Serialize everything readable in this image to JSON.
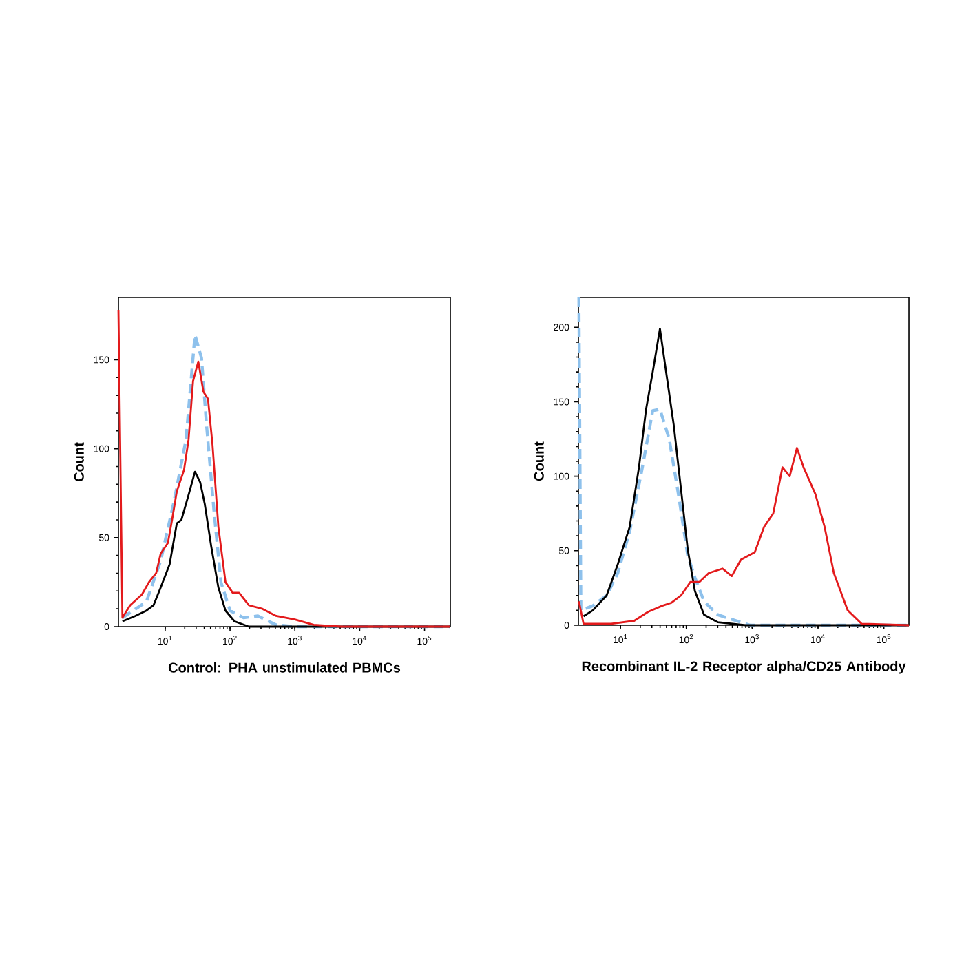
{
  "chart_data": [
    {
      "type": "line",
      "xlabel": "Control: PHA unstimulated PBMCs",
      "ylabel": "Count",
      "log": "x",
      "xlim": [
        1.9,
        250000
      ],
      "ylim": [
        0,
        185
      ],
      "xticks": [
        {
          "value": 10,
          "label": "10$^{1}$"
        },
        {
          "value": 100,
          "label": "10$^{2}$"
        },
        {
          "value": 1000,
          "label": "10$^{3}$"
        },
        {
          "value": 10000,
          "label": "10$^{4}$"
        },
        {
          "value": 100000,
          "label": "10$^{5}$"
        }
      ],
      "yticks": [
        0,
        50,
        100,
        150
      ],
      "series": [
        {
          "color": "#8ec1ec",
          "line_style": "dashed",
          "x": [
            2.19,
            5.13,
            8.51,
            13.8,
            20.9,
            28.8,
            36.3,
            43.7,
            56.2,
            72.4,
            100,
            162,
            269,
            513,
            1000,
            250000
          ],
          "values": [
            5,
            14,
            37,
            71,
            105,
            164,
            151,
            112,
            66,
            25,
            9,
            5,
            6,
            1,
            0,
            0
          ]
        },
        {
          "color": "#000000",
          "x": [
            2.19,
            3.47,
            5.13,
            6.61,
            8.51,
            11.7,
            15.1,
            17.8,
            22.9,
            28.8,
            34.7,
            40.7,
            51.3,
            66.1,
            85.1,
            117,
            195,
            250000
          ],
          "values": [
            3,
            6,
            9,
            12,
            22,
            35,
            58,
            60,
            74,
            87,
            81,
            69,
            45,
            22,
            9,
            3,
            0,
            0
          ]
        },
        {
          "color": "#e31a1c",
          "x": [
            1.9,
            2.19,
            2.88,
            4.37,
            5.62,
            7.24,
            8.51,
            11,
            12.9,
            15.1,
            19.5,
            22.9,
            26.9,
            32.4,
            38.9,
            45.7,
            53.7,
            66.1,
            85.1,
            110,
            138,
            195,
            316,
            513,
            1000,
            1950,
            5129,
            250000
          ],
          "values": [
            178,
            5,
            12,
            18,
            25,
            30,
            41,
            47,
            61,
            76,
            88,
            105,
            138,
            149,
            132,
            128,
            102,
            56,
            25,
            19,
            19,
            12,
            10,
            6,
            4,
            1,
            0,
            0
          ]
        }
      ]
    },
    {
      "type": "line",
      "xlabel": "Recombinant IL-2 Receptor alpha/CD25 Antibody",
      "ylabel": "Count",
      "log": "x",
      "xlim": [
        2.3,
        240000
      ],
      "ylim": [
        0,
        220
      ],
      "xticks": [
        {
          "value": 10,
          "label": "10$^{1}$"
        },
        {
          "value": 100,
          "label": "10$^{2}$"
        },
        {
          "value": 1000,
          "label": "10$^{3}$"
        },
        {
          "value": 10000,
          "label": "10$^{4}$"
        },
        {
          "value": 100000,
          "label": "10$^{5}$"
        }
      ],
      "yticks": [
        0,
        50,
        100,
        150,
        200
      ],
      "series": [
        {
          "color": "#8ec1ec",
          "line_style": "dashed",
          "x": [
            2.34,
            2.51,
            3.8,
            6.17,
            9.12,
            13.8,
            20.9,
            30.9,
            39.8,
            55,
            75.9,
            105,
            135,
            186,
            302,
            575,
            933,
            239900
          ],
          "values": [
            220,
            10,
            13,
            20,
            35,
            63,
            103,
            144,
            145,
            125,
            88,
            47,
            32,
            16,
            7,
            3,
            0,
            0
          ]
        },
        {
          "color": "#000000",
          "x": [
            2.75,
            3.8,
            6.17,
            9.12,
            13.8,
            19.1,
            24.5,
            30.9,
            39.8,
            50.1,
            64.6,
            83.2,
            105,
            135,
            186,
            302,
            794,
            239900
          ],
          "values": [
            6,
            10,
            20,
            41,
            66,
            106,
            145,
            170,
            199,
            168,
            134,
            91,
            51,
            23,
            7,
            2,
            0,
            0
          ]
        },
        {
          "color": "#e31a1c",
          "x": [
            2.34,
            2.75,
            7.24,
            16.2,
            26.3,
            42.7,
            58.9,
            83.2,
            115,
            158,
            219,
            355,
            490,
            676,
            1096,
            1514,
            2089,
            2884,
            3715,
            4786,
            6026,
            9120,
            12590,
            17380,
            28180,
            45710,
            239900
          ],
          "values": [
            16,
            1,
            1,
            3,
            9,
            13,
            15,
            20,
            29,
            29,
            35,
            38,
            33,
            44,
            49,
            66,
            75,
            106,
            100,
            119,
            106,
            88,
            66,
            35,
            10,
            1,
            0
          ]
        }
      ]
    }
  ]
}
